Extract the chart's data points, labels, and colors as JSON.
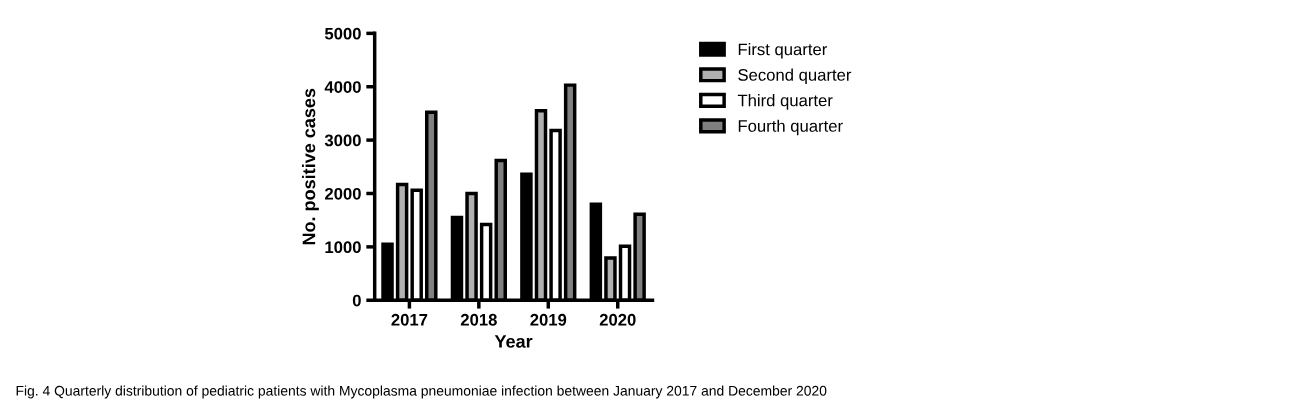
{
  "chart_data": {
    "type": "bar",
    "xlabel": "Year",
    "ylabel": "No. positive cases",
    "categories": [
      "2017",
      "2018",
      "2019",
      "2020"
    ],
    "series": [
      {
        "name": "First quarter",
        "color": "#000000",
        "values": [
          1050,
          1550,
          2360,
          1800
        ]
      },
      {
        "name": "Second quarter",
        "color": "#b0b0b0",
        "values": [
          2170,
          2000,
          3550,
          790
        ]
      },
      {
        "name": "Third quarter",
        "color": "#ffffff",
        "values": [
          2060,
          1420,
          3180,
          1010
        ]
      },
      {
        "name": "Fourth quarter",
        "color": "#808080",
        "values": [
          3520,
          2620,
          4030,
          1610
        ]
      }
    ],
    "ylim": [
      0,
      5000
    ],
    "yticks": [
      0,
      1000,
      2000,
      3000,
      4000,
      5000
    ],
    "grid": false,
    "legend": "top right",
    "annotations": [
      "Fig. 4 Quarterly distribution of pediatric patients with Mycoplasma pneumoniae infection between January 2017 and December 2020"
    ]
  }
}
